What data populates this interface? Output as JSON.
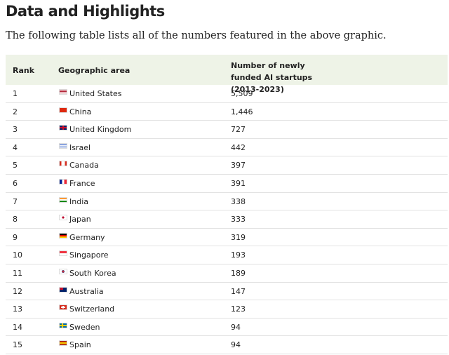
{
  "header": {
    "title": "Data and Highlights",
    "subtitle": "The following table lists all of the numbers featured in the above graphic."
  },
  "table": {
    "columns": [
      "Rank",
      "Geographic area",
      "Number of newly funded AI startups (2013-2023)"
    ],
    "rows": [
      [
        "1",
        "United States",
        "5,509"
      ],
      [
        "2",
        "China",
        "1,446"
      ],
      [
        "3",
        "United Kingdom",
        "727"
      ],
      [
        "4",
        "Israel",
        "442"
      ],
      [
        "5",
        "Canada",
        "397"
      ],
      [
        "6",
        "France",
        "391"
      ],
      [
        "7",
        "India",
        "338"
      ],
      [
        "8",
        "Japan",
        "333"
      ],
      [
        "9",
        "Germany",
        "319"
      ],
      [
        "10",
        "Singapore",
        "193"
      ],
      [
        "11",
        "South Korea",
        "189"
      ],
      [
        "12",
        "Australia",
        "147"
      ],
      [
        "13",
        "Switzerland",
        "123"
      ],
      [
        "14",
        "Sweden",
        "94"
      ],
      [
        "15",
        "Spain",
        "94"
      ]
    ]
  }
}
